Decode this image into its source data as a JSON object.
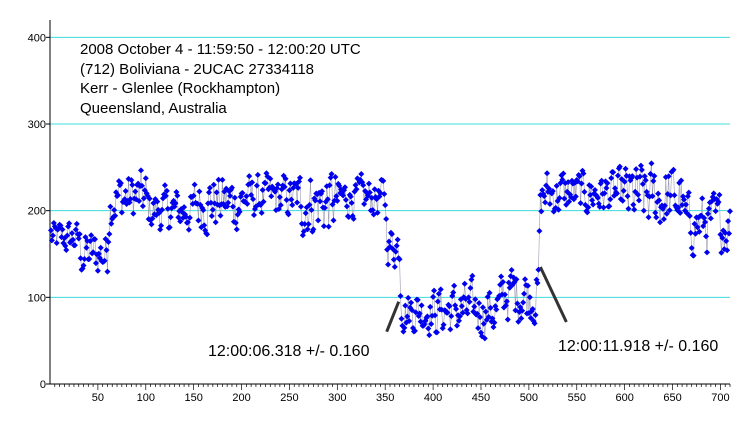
{
  "chart_data": {
    "type": "scatter",
    "title_lines": [
      "2008 October 4 - 11:59:50 - 12:00:20 UTC",
      "(712) Boliviana - 2UCAC 27334118",
      "Kerr - Glenlee (Rockhampton)",
      "Queensland, Australia"
    ],
    "xlabel": "",
    "ylabel": "",
    "xlim": [
      0,
      710
    ],
    "ylim": [
      0,
      420
    ],
    "x_ticks": [
      50,
      100,
      150,
      200,
      250,
      300,
      350,
      400,
      450,
      500,
      550,
      600,
      650,
      700
    ],
    "y_ticks": [
      0,
      100,
      200,
      300,
      400
    ],
    "grid": "horizontal",
    "colors": {
      "series": "#0000ee",
      "grid": "#3cdcdc",
      "axis": "#000000",
      "leader": "#333333"
    },
    "series": [
      {
        "points_connected": true,
        "x_start": 1,
        "x_step": 1,
        "segments": [
          {
            "x_from": 1,
            "x_to": 30,
            "mean": 168,
            "amp": 35
          },
          {
            "x_from": 30,
            "x_to": 60,
            "mean": 150,
            "amp": 50
          },
          {
            "x_from": 60,
            "x_to": 100,
            "mean": 215,
            "amp": 55
          },
          {
            "x_from": 100,
            "x_to": 150,
            "mean": 200,
            "amp": 45
          },
          {
            "x_from": 150,
            "x_to": 200,
            "mean": 210,
            "amp": 60
          },
          {
            "x_from": 200,
            "x_to": 260,
            "mean": 215,
            "amp": 45
          },
          {
            "x_from": 260,
            "x_to": 300,
            "mean": 210,
            "amp": 70
          },
          {
            "x_from": 300,
            "x_to": 350,
            "mean": 215,
            "amp": 40
          },
          {
            "x_from": 350,
            "x_to": 365,
            "mean": 160,
            "amp": 45
          },
          {
            "x_from": 365,
            "x_to": 400,
            "mean": 85,
            "amp": 45
          },
          {
            "x_from": 400,
            "x_to": 470,
            "mean": 85,
            "amp": 55
          },
          {
            "x_from": 470,
            "x_to": 510,
            "mean": 105,
            "amp": 60
          },
          {
            "x_from": 510,
            "x_to": 540,
            "mean": 220,
            "amp": 50
          },
          {
            "x_from": 540,
            "x_to": 600,
            "mean": 220,
            "amp": 45
          },
          {
            "x_from": 600,
            "x_to": 660,
            "mean": 215,
            "amp": 70
          },
          {
            "x_from": 660,
            "x_to": 710,
            "mean": 185,
            "amp": 60
          }
        ]
      }
    ],
    "annotations": [
      {
        "text": "12:00:06.318 +/- 0.160",
        "point_x": 362,
        "point_y": 95
      },
      {
        "text": "12:00:11.918 +/- 0.160",
        "point_x": 512,
        "point_y": 135
      }
    ]
  }
}
